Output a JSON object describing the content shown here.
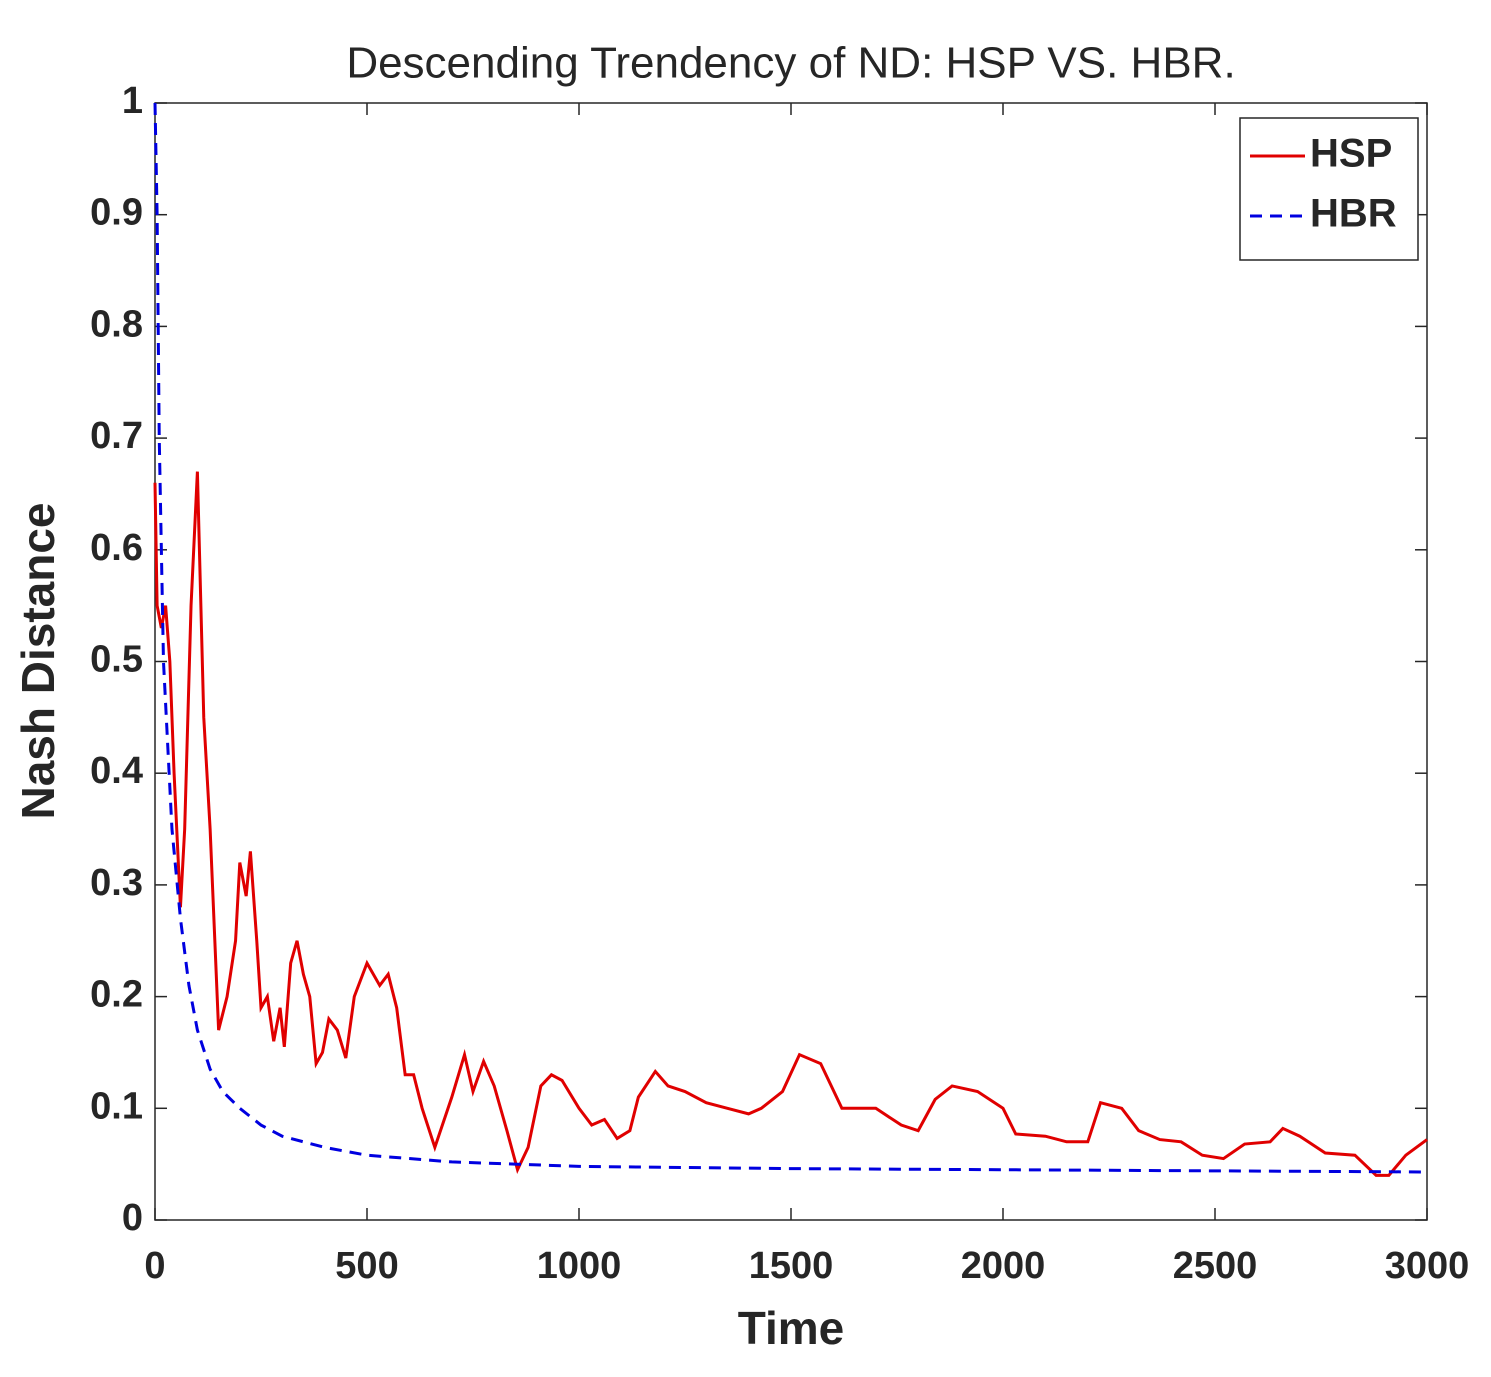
{
  "chart_data": {
    "type": "line",
    "title": "Descending Trendency of ND: HSP VS. HBR.",
    "x_label": "Time",
    "y_label": "Nash Distance",
    "xlim": [
      0,
      3000
    ],
    "xticks": [
      0,
      500,
      1000,
      1500,
      2000,
      2500,
      3000
    ],
    "ylim": [
      0,
      1
    ],
    "yticks": [
      0,
      0.1,
      0.2,
      0.3,
      0.4,
      0.5,
      0.6,
      0.7,
      0.8,
      0.9,
      1
    ],
    "legend": "upper right",
    "series": [
      {
        "name": "HSP",
        "color": "#e00000",
        "dash": false,
        "x": [
          0,
          5,
          15,
          25,
          35,
          45,
          60,
          70,
          85,
          100,
          115,
          130,
          150,
          170,
          190,
          200,
          215,
          225,
          240,
          250,
          265,
          280,
          295,
          305,
          320,
          335,
          350,
          365,
          380,
          395,
          410,
          430,
          450,
          470,
          500,
          530,
          550,
          570,
          590,
          610,
          630,
          660,
          700,
          730,
          750,
          775,
          800,
          830,
          855,
          880,
          910,
          935,
          960,
          1000,
          1030,
          1060,
          1090,
          1120,
          1140,
          1180,
          1210,
          1250,
          1300,
          1350,
          1400,
          1430,
          1480,
          1520,
          1570,
          1620,
          1700,
          1760,
          1800,
          1840,
          1880,
          1940,
          2000,
          2030,
          2100,
          2150,
          2200,
          2230,
          2280,
          2320,
          2370,
          2420,
          2470,
          2520,
          2570,
          2630,
          2660,
          2700,
          2760,
          2830,
          2880,
          2910,
          2950,
          3000
        ],
        "values": [
          0.66,
          0.55,
          0.53,
          0.55,
          0.5,
          0.4,
          0.28,
          0.35,
          0.55,
          0.67,
          0.45,
          0.35,
          0.17,
          0.2,
          0.25,
          0.32,
          0.29,
          0.33,
          0.25,
          0.19,
          0.2,
          0.16,
          0.19,
          0.155,
          0.23,
          0.25,
          0.22,
          0.2,
          0.14,
          0.15,
          0.18,
          0.17,
          0.145,
          0.2,
          0.23,
          0.21,
          0.22,
          0.19,
          0.13,
          0.13,
          0.1,
          0.065,
          0.11,
          0.148,
          0.115,
          0.142,
          0.12,
          0.08,
          0.045,
          0.065,
          0.12,
          0.13,
          0.125,
          0.1,
          0.085,
          0.09,
          0.073,
          0.08,
          0.11,
          0.133,
          0.12,
          0.115,
          0.105,
          0.1,
          0.095,
          0.1,
          0.115,
          0.148,
          0.14,
          0.1,
          0.1,
          0.085,
          0.08,
          0.108,
          0.12,
          0.115,
          0.1,
          0.077,
          0.075,
          0.07,
          0.07,
          0.105,
          0.1,
          0.08,
          0.072,
          0.07,
          0.058,
          0.055,
          0.068,
          0.07,
          0.082,
          0.075,
          0.06,
          0.058,
          0.04,
          0.04,
          0.058,
          0.072
        ]
      },
      {
        "name": "HBR",
        "color": "#0000e0",
        "dash": true,
        "x": [
          0,
          5,
          10,
          20,
          40,
          60,
          80,
          100,
          130,
          160,
          200,
          250,
          300,
          400,
          500,
          700,
          1000,
          1500,
          2000,
          2500,
          3000
        ],
        "values": [
          1,
          0.9,
          0.7,
          0.5,
          0.35,
          0.27,
          0.21,
          0.17,
          0.135,
          0.115,
          0.1,
          0.085,
          0.075,
          0.065,
          0.058,
          0.052,
          0.048,
          0.046,
          0.045,
          0.044,
          0.043
        ]
      }
    ]
  }
}
